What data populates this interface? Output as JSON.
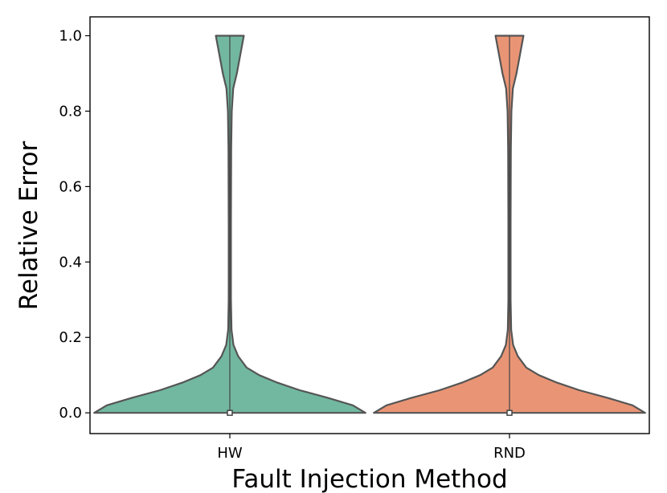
{
  "chart_data": {
    "type": "violin",
    "xlabel": "Fault Injection Method",
    "ylabel": "Relative Error",
    "ylim": [
      -0.055,
      1.05
    ],
    "yticks": [
      "0.0",
      "0.2",
      "0.4",
      "0.6",
      "0.8",
      "1.0"
    ],
    "grid": false,
    "categories": [
      "HW",
      "RND"
    ],
    "series": [
      {
        "category": "HW",
        "color": "#72b8a1",
        "median": 0.0,
        "range": [
          0.0,
          1.0
        ],
        "density_profile": [
          [
            0.0,
            0.485
          ],
          [
            0.02,
            0.44
          ],
          [
            0.04,
            0.35
          ],
          [
            0.06,
            0.25
          ],
          [
            0.08,
            0.17
          ],
          [
            0.1,
            0.105
          ],
          [
            0.12,
            0.06
          ],
          [
            0.15,
            0.03
          ],
          [
            0.18,
            0.013
          ],
          [
            0.22,
            0.006
          ],
          [
            0.3,
            0.004
          ],
          [
            0.5,
            0.004
          ],
          [
            0.7,
            0.005
          ],
          [
            0.8,
            0.007
          ],
          [
            0.86,
            0.012
          ],
          [
            0.9,
            0.025
          ],
          [
            0.94,
            0.035
          ],
          [
            1.0,
            0.05
          ]
        ]
      },
      {
        "category": "RND",
        "color": "#e99575",
        "median": 0.0,
        "range": [
          0.0,
          1.0
        ],
        "density_profile": [
          [
            0.0,
            0.485
          ],
          [
            0.02,
            0.44
          ],
          [
            0.04,
            0.35
          ],
          [
            0.06,
            0.25
          ],
          [
            0.08,
            0.17
          ],
          [
            0.1,
            0.105
          ],
          [
            0.12,
            0.06
          ],
          [
            0.15,
            0.03
          ],
          [
            0.18,
            0.013
          ],
          [
            0.22,
            0.006
          ],
          [
            0.3,
            0.004
          ],
          [
            0.5,
            0.004
          ],
          [
            0.7,
            0.005
          ],
          [
            0.8,
            0.007
          ],
          [
            0.86,
            0.012
          ],
          [
            0.9,
            0.025
          ],
          [
            0.94,
            0.035
          ],
          [
            1.0,
            0.05
          ]
        ]
      }
    ]
  }
}
